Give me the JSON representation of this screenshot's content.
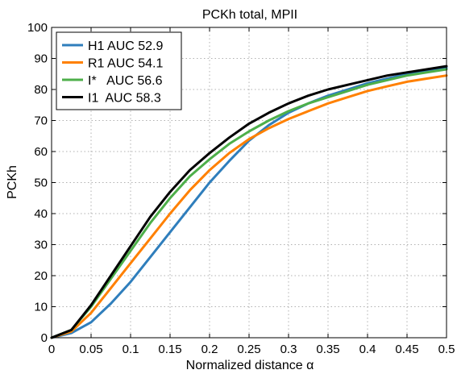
{
  "chart_data": {
    "type": "line",
    "title": "PCKh total, MPII",
    "xlabel": "Normalized distance α",
    "ylabel": "PCKh",
    "xlim": [
      0,
      0.5
    ],
    "ylim": [
      0,
      100
    ],
    "x_ticks": [
      0,
      0.05,
      0.1,
      0.15,
      0.2,
      0.25,
      0.3,
      0.35,
      0.4,
      0.45,
      0.5
    ],
    "x_tick_labels": [
      "0",
      "0.05",
      "0.1",
      "0.15",
      "0.2",
      "0.25",
      "0.3",
      "0.35",
      "0.4",
      "0.45",
      "0.5"
    ],
    "y_ticks": [
      0,
      10,
      20,
      30,
      40,
      50,
      60,
      70,
      80,
      90,
      100
    ],
    "y_tick_labels": [
      "0",
      "10",
      "20",
      "30",
      "40",
      "50",
      "60",
      "70",
      "80",
      "90",
      "100"
    ],
    "grid": true,
    "legend_position": "top-left",
    "x": [
      0,
      0.025,
      0.05,
      0.075,
      0.1,
      0.125,
      0.15,
      0.175,
      0.2,
      0.225,
      0.25,
      0.275,
      0.3,
      0.325,
      0.35,
      0.375,
      0.4,
      0.425,
      0.45,
      0.475,
      0.5
    ],
    "series": [
      {
        "name": "H1",
        "legend_label": "H1 AUC 52.9",
        "color": "#2f7ebc",
        "values": [
          0,
          1.5,
          5,
          11,
          18,
          26,
          34,
          42,
          50,
          57,
          63.5,
          68.5,
          72.5,
          75.5,
          78,
          80,
          82,
          83.5,
          85,
          86,
          87
        ]
      },
      {
        "name": "R1",
        "legend_label": "R1 AUC 54.1",
        "color": "#ff8000",
        "values": [
          0,
          2,
          8,
          16,
          24,
          32,
          40,
          47.5,
          54,
          59.5,
          64,
          67.5,
          70.5,
          73,
          75.5,
          77.5,
          79.5,
          81,
          82.5,
          83.5,
          84.5
        ]
      },
      {
        "name": "I*",
        "legend_label": "I*   AUC 56.6",
        "color": "#4daf4a",
        "values": [
          0,
          2.5,
          10,
          19,
          28,
          37,
          45,
          52,
          57.5,
          62.5,
          66.5,
          70,
          73,
          75.5,
          77.5,
          79.5,
          81.5,
          83,
          84.5,
          85.5,
          86.5
        ]
      },
      {
        "name": "I1",
        "legend_label": "I1  AUC 58.3",
        "color": "#000000",
        "values": [
          0,
          2.5,
          10.5,
          20,
          29.5,
          39,
          47,
          54,
          59.5,
          64.5,
          69,
          72.5,
          75.5,
          78,
          80,
          81.5,
          83,
          84.5,
          85.5,
          86.5,
          87.5
        ]
      }
    ]
  }
}
